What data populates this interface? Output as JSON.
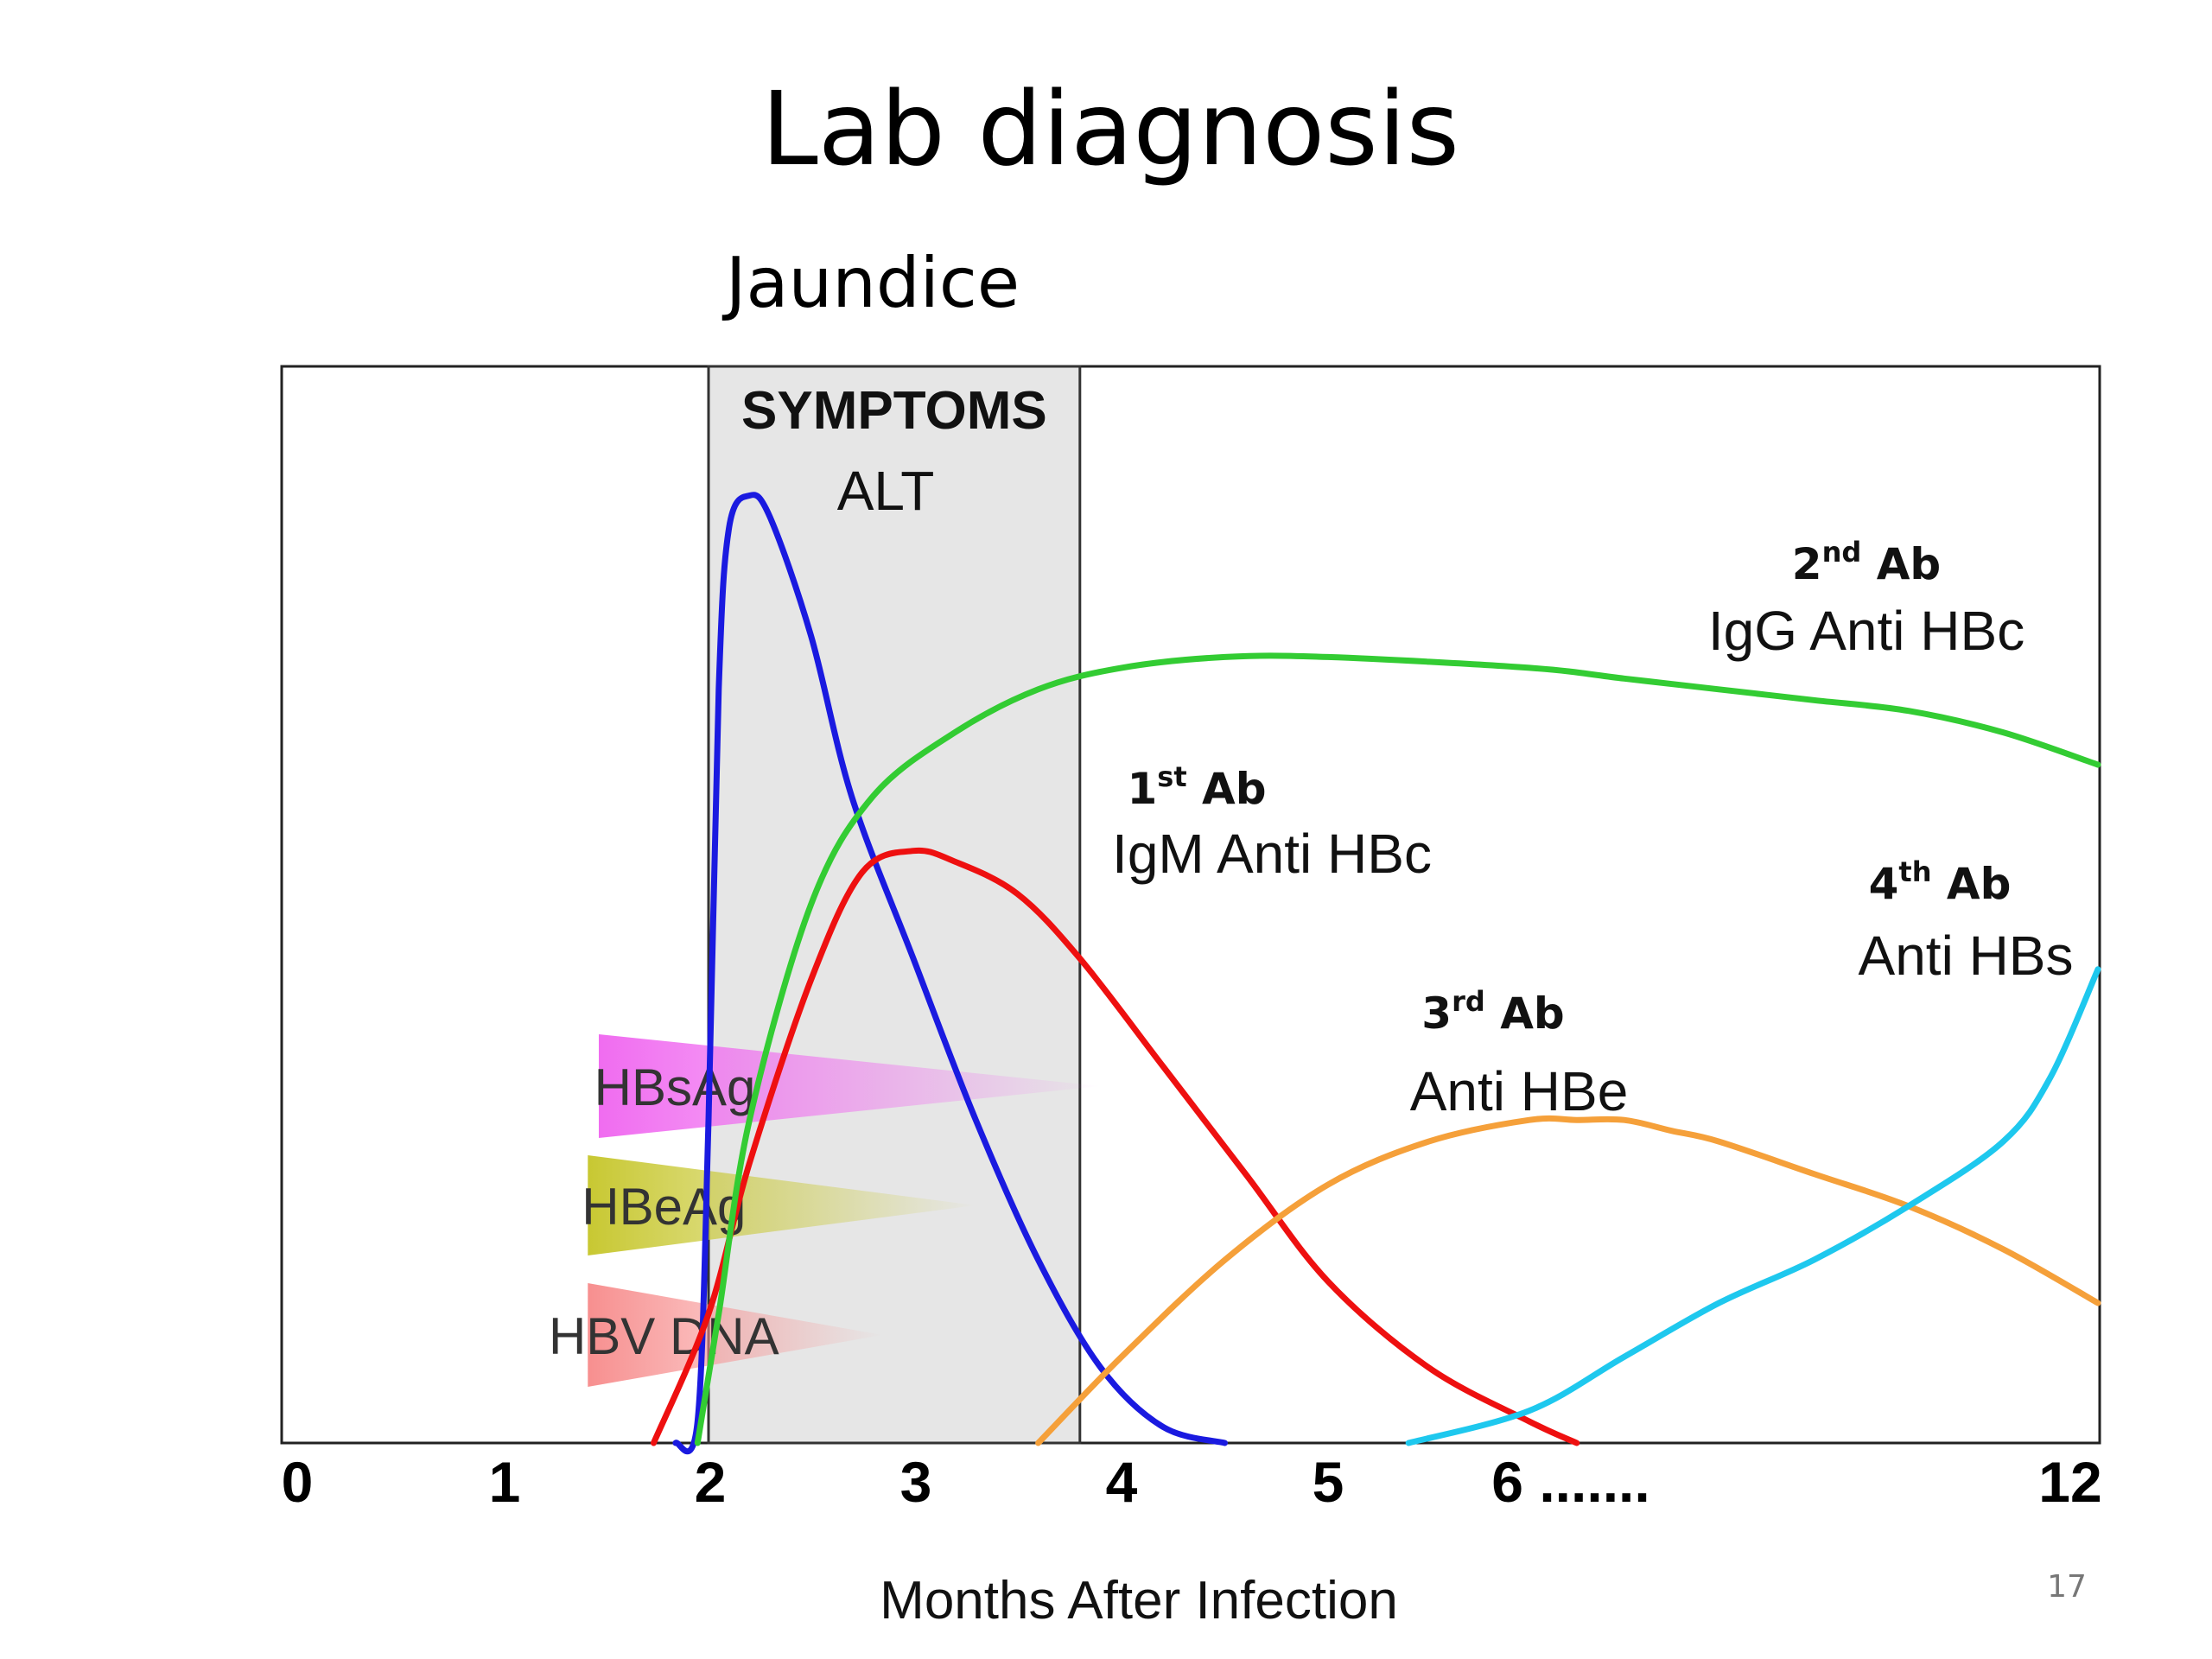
{
  "slide": {
    "title": "Lab diagnosis",
    "page_number": "17"
  },
  "chart_data": {
    "type": "line",
    "title": "",
    "xlabel": "Months After Infection",
    "ylabel": "",
    "x_ticks": [
      "0",
      "1",
      "2",
      "3",
      "4",
      "5",
      "6 .......",
      "12"
    ],
    "grid": false,
    "annotations": {
      "jaundice": "Jaundice",
      "symptoms": "SYMPTOMS",
      "alt": "ALT",
      "symptom_window_months": [
        2,
        3.8
      ]
    },
    "antigens": [
      {
        "name": "HBsAg",
        "color": "#f06cf0",
        "start": 1.5,
        "end": 3.9
      },
      {
        "name": "HBeAg",
        "color": "#c8c832",
        "start": 1.45,
        "end": 3.3
      },
      {
        "name": "HBV DNA",
        "color": "#f78f8f",
        "start": 1.45,
        "end": 2.85
      }
    ],
    "series": [
      {
        "name": "ALT",
        "color": "#1a1ae0",
        "x": [
          1.85,
          1.95,
          2.0,
          2.05,
          2.1,
          2.2,
          2.3,
          2.5,
          2.7,
          3.0,
          3.3,
          3.6,
          3.9,
          4.2,
          4.5
        ],
        "y": [
          0,
          2,
          30,
          70,
          85,
          88,
          86,
          75,
          60,
          45,
          30,
          17,
          7,
          1.5,
          0
        ]
      },
      {
        "name": "IgM Anti HBc",
        "label": "1st Ab",
        "color": "#ee1010",
        "x": [
          1.75,
          2.0,
          2.2,
          2.5,
          2.75,
          3.0,
          3.2,
          3.5,
          3.8,
          4.2,
          4.6,
          5.0,
          5.5,
          6.0,
          6.5
        ],
        "y": [
          0,
          12,
          26,
          43,
          53,
          55,
          54,
          51,
          45,
          35,
          25,
          15,
          7,
          2,
          0
        ]
      },
      {
        "name": "IgG Anti HBc",
        "label": "2nd Ab",
        "color": "#33cc33",
        "x": [
          1.95,
          2.05,
          2.2,
          2.5,
          2.8,
          3.2,
          3.6,
          4.0,
          4.5,
          5.0,
          6.0,
          7.0,
          8.0,
          9.0,
          10.0,
          11.0,
          12.0
        ],
        "y": [
          0,
          12,
          30,
          50,
          60,
          66,
          70,
          72,
          73,
          73,
          72,
          71,
          70,
          69,
          68,
          66,
          63
        ]
      },
      {
        "name": "Anti HBe",
        "label": "3rd Ab",
        "color": "#f5a03a",
        "x": [
          3.6,
          4.0,
          4.5,
          5.0,
          5.5,
          6.0,
          6.5,
          7.0,
          7.5,
          8.0,
          9.0,
          10.0,
          11.0,
          12.0
        ],
        "y": [
          0,
          8,
          17,
          24,
          28,
          30,
          30,
          30,
          29,
          28,
          25,
          22,
          18,
          13
        ]
      },
      {
        "name": "Anti HBs",
        "label": "4th Ab",
        "color": "#1ec8ee",
        "x": [
          5.4,
          6.0,
          7.0,
          8.0,
          9.0,
          10.0,
          11.0,
          11.5,
          12.0
        ],
        "y": [
          0,
          3,
          8,
          13,
          17,
          22,
          28,
          34,
          44
        ]
      }
    ]
  }
}
